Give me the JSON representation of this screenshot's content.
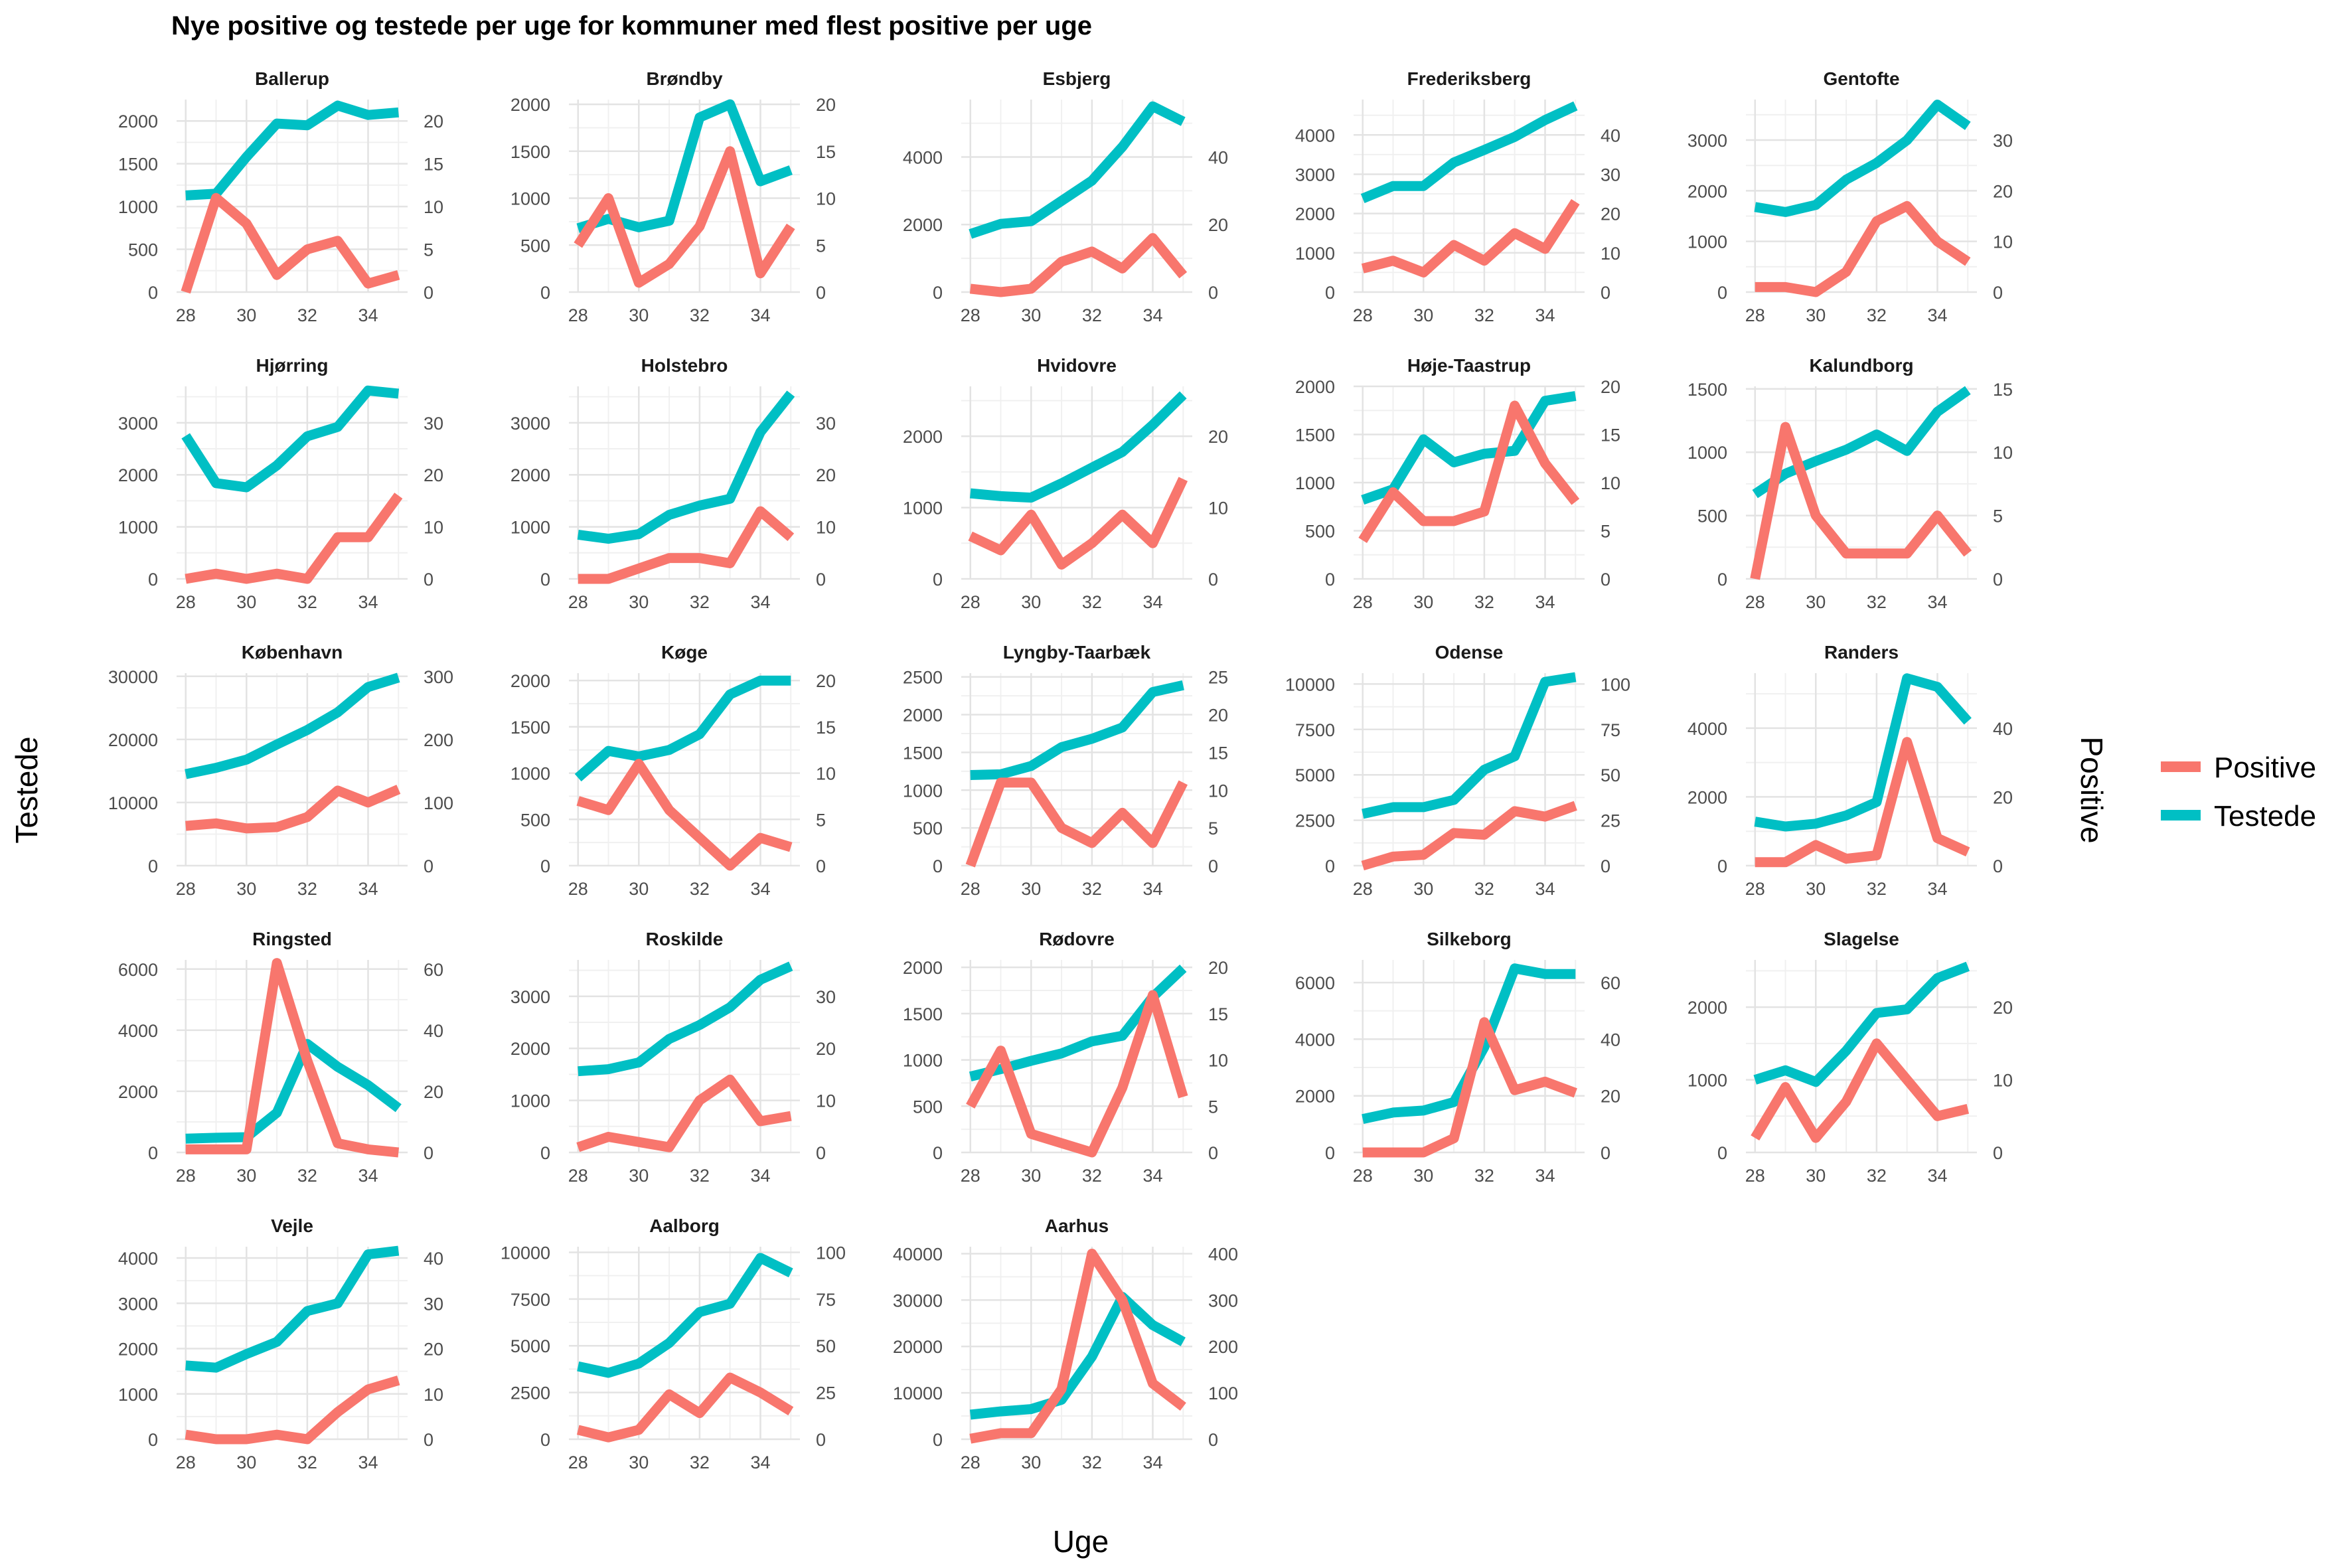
{
  "title": "Nye positive og testede per uge for kommuner med flest positive per uge",
  "xlabel": "Uge",
  "ylabel_left": "Testede",
  "ylabel_right": "Positive",
  "legend": [
    {
      "label": "Positive",
      "color": "#F8766D"
    },
    {
      "label": "Testede",
      "color": "#00BFC4"
    }
  ],
  "chart_data": {
    "type": "line",
    "weeks": [
      28,
      29,
      30,
      31,
      32,
      33,
      34,
      35
    ],
    "xticks": [
      28,
      30,
      32,
      34
    ],
    "facets": [
      {
        "name": "Ballerup",
        "testede": [
          1130,
          1150,
          1580,
          1970,
          1950,
          2180,
          2070,
          2100
        ],
        "positive": [
          0,
          11,
          8,
          2,
          5,
          6,
          1,
          2
        ],
        "left_ticks": [
          0,
          500,
          1000,
          1500,
          2000
        ],
        "right_ticks": [
          0,
          5,
          10,
          15,
          20
        ],
        "left_max": 2250,
        "right_max": 22.5
      },
      {
        "name": "Brøndby",
        "testede": [
          680,
          780,
          690,
          760,
          1860,
          2000,
          1180,
          1300
        ],
        "positive": [
          5,
          10,
          1,
          3,
          7,
          15,
          2,
          7
        ],
        "left_ticks": [
          0,
          500,
          1000,
          1500,
          2000
        ],
        "right_ticks": [
          0,
          5,
          10,
          15,
          20
        ],
        "left_max": 2050,
        "right_max": 20.5
      },
      {
        "name": "Esbjerg",
        "testede": [
          1720,
          2020,
          2100,
          2700,
          3300,
          4300,
          5500,
          5050
        ],
        "positive": [
          1,
          0,
          1,
          9,
          12,
          7,
          16,
          5
        ],
        "left_ticks": [
          0,
          2000,
          4000
        ],
        "right_ticks": [
          0,
          20,
          40
        ],
        "left_max": 5700,
        "right_max": 57
      },
      {
        "name": "Frederiksberg",
        "testede": [
          2380,
          2700,
          2700,
          3300,
          3620,
          3950,
          4380,
          4740
        ],
        "positive": [
          6,
          8,
          5,
          12,
          8,
          15,
          11,
          23
        ],
        "left_ticks": [
          0,
          1000,
          2000,
          3000,
          4000
        ],
        "right_ticks": [
          0,
          10,
          20,
          30,
          40
        ],
        "left_max": 4900,
        "right_max": 49
      },
      {
        "name": "Gentofte",
        "testede": [
          1680,
          1580,
          1720,
          2220,
          2550,
          3000,
          3700,
          3280
        ],
        "positive": [
          1,
          1,
          0,
          4,
          14,
          17,
          10,
          6
        ],
        "left_ticks": [
          0,
          1000,
          2000,
          3000
        ],
        "right_ticks": [
          0,
          10,
          20,
          30
        ],
        "left_max": 3800,
        "right_max": 38
      },
      {
        "name": "Hjørring",
        "testede": [
          2750,
          1840,
          1760,
          2180,
          2740,
          2920,
          3620,
          3560
        ],
        "positive": [
          0,
          1,
          0,
          1,
          0,
          8,
          8,
          16
        ],
        "left_ticks": [
          0,
          1000,
          2000,
          3000
        ],
        "right_ticks": [
          0,
          10,
          20,
          30
        ],
        "left_max": 3700,
        "right_max": 37
      },
      {
        "name": "Holstebro",
        "testede": [
          850,
          770,
          860,
          1230,
          1410,
          1540,
          2820,
          3560
        ],
        "positive": [
          0,
          0,
          2,
          4,
          4,
          3,
          13,
          8
        ],
        "left_ticks": [
          0,
          1000,
          2000,
          3000
        ],
        "right_ticks": [
          0,
          10,
          20,
          30
        ],
        "left_max": 3700,
        "right_max": 37
      },
      {
        "name": "Hvidovre",
        "testede": [
          1200,
          1160,
          1140,
          1340,
          1560,
          1780,
          2160,
          2580
        ],
        "positive": [
          6,
          4,
          9,
          2,
          5,
          9,
          5,
          14
        ],
        "left_ticks": [
          0,
          1000,
          2000
        ],
        "right_ticks": [
          0,
          10,
          20
        ],
        "left_max": 2700,
        "right_max": 27
      },
      {
        "name": "Høje-Taastrup",
        "testede": [
          820,
          930,
          1450,
          1210,
          1300,
          1330,
          1850,
          1900
        ],
        "positive": [
          4,
          9,
          6,
          6,
          7,
          18,
          12,
          8
        ],
        "left_ticks": [
          0,
          500,
          1000,
          1500,
          2000
        ],
        "right_ticks": [
          0,
          5,
          10,
          15,
          20
        ],
        "left_max": 2000,
        "right_max": 20
      },
      {
        "name": "Kalundborg",
        "testede": [
          670,
          830,
          930,
          1020,
          1140,
          1010,
          1320,
          1490
        ],
        "positive": [
          0,
          12,
          5,
          2,
          2,
          2,
          5,
          2
        ],
        "left_ticks": [
          0,
          500,
          1000,
          1500
        ],
        "right_ticks": [
          0,
          5,
          10,
          15
        ],
        "left_max": 1520,
        "right_max": 15.2
      },
      {
        "name": "København",
        "testede": [
          14500,
          15500,
          16800,
          19200,
          21500,
          24300,
          28300,
          29800
        ],
        "positive": [
          63,
          67,
          59,
          61,
          77,
          119,
          100,
          121
        ],
        "left_ticks": [
          0,
          10000,
          20000,
          30000
        ],
        "right_ticks": [
          0,
          100,
          200,
          300
        ],
        "left_max": 30500,
        "right_max": 305
      },
      {
        "name": "Køge",
        "testede": [
          950,
          1240,
          1180,
          1250,
          1420,
          1850,
          2000,
          2000
        ],
        "positive": [
          7,
          6,
          11,
          6,
          3,
          0,
          3,
          2
        ],
        "left_ticks": [
          0,
          500,
          1000,
          1500,
          2000
        ],
        "right_ticks": [
          0,
          5,
          10,
          15,
          20
        ],
        "left_max": 2080,
        "right_max": 20.8
      },
      {
        "name": "Lyngby-Taarbæk",
        "testede": [
          1200,
          1210,
          1320,
          1570,
          1680,
          1830,
          2300,
          2390
        ],
        "positive": [
          0,
          11,
          11,
          5,
          3,
          7,
          3,
          11
        ],
        "left_ticks": [
          0,
          500,
          1000,
          1500,
          2000,
          2500
        ],
        "right_ticks": [
          0,
          5,
          10,
          15,
          20,
          25
        ],
        "left_max": 2550,
        "right_max": 25.5
      },
      {
        "name": "Odense",
        "testede": [
          2850,
          3220,
          3220,
          3620,
          5280,
          6020,
          10120,
          10380
        ],
        "positive": [
          0,
          5,
          6,
          18,
          17,
          30,
          27,
          33
        ],
        "left_ticks": [
          0,
          2500,
          5000,
          7500,
          10000
        ],
        "right_ticks": [
          0,
          25,
          50,
          75,
          100
        ],
        "left_max": 10600,
        "right_max": 106
      },
      {
        "name": "Randers",
        "testede": [
          1280,
          1140,
          1220,
          1460,
          1850,
          5450,
          5200,
          4200
        ],
        "positive": [
          1,
          1,
          6,
          2,
          3,
          36,
          8,
          4
        ],
        "left_ticks": [
          0,
          2000,
          4000
        ],
        "right_ticks": [
          0,
          20,
          40
        ],
        "left_max": 5600,
        "right_max": 56
      },
      {
        "name": "Ringsted",
        "testede": [
          450,
          480,
          500,
          1300,
          3550,
          2800,
          2200,
          1450
        ],
        "positive": [
          1,
          1,
          1,
          62,
          30,
          3,
          1,
          0
        ],
        "left_ticks": [
          0,
          2000,
          4000,
          6000
        ],
        "right_ticks": [
          0,
          20,
          40,
          60
        ],
        "left_max": 6300,
        "right_max": 63
      },
      {
        "name": "Roskilde",
        "testede": [
          1560,
          1600,
          1730,
          2180,
          2450,
          2790,
          3320,
          3580
        ],
        "positive": [
          1,
          3,
          2,
          1,
          10,
          14,
          6,
          7
        ],
        "left_ticks": [
          0,
          1000,
          2000,
          3000
        ],
        "right_ticks": [
          0,
          10,
          20,
          30
        ],
        "left_max": 3700,
        "right_max": 37
      },
      {
        "name": "Rødovre",
        "testede": [
          820,
          900,
          990,
          1070,
          1200,
          1260,
          1680,
          1990
        ],
        "positive": [
          5,
          11,
          2,
          1,
          0,
          7,
          17,
          6
        ],
        "left_ticks": [
          0,
          500,
          1000,
          1500,
          2000
        ],
        "right_ticks": [
          0,
          5,
          10,
          15,
          20
        ],
        "left_max": 2080,
        "right_max": 20.8
      },
      {
        "name": "Silkeborg",
        "testede": [
          1180,
          1410,
          1480,
          1780,
          3720,
          6500,
          6300,
          6300
        ],
        "positive": [
          0,
          0,
          0,
          5,
          46,
          22,
          25,
          21
        ],
        "left_ticks": [
          0,
          2000,
          4000,
          6000
        ],
        "right_ticks": [
          0,
          20,
          40,
          60
        ],
        "left_max": 6800,
        "right_max": 68
      },
      {
        "name": "Slagelse",
        "testede": [
          1000,
          1130,
          970,
          1400,
          1920,
          1970,
          2400,
          2560
        ],
        "positive": [
          2,
          9,
          2,
          7,
          15,
          10,
          5,
          6
        ],
        "left_ticks": [
          0,
          1000,
          2000
        ],
        "right_ticks": [
          0,
          10,
          20
        ],
        "left_max": 2650,
        "right_max": 26.5
      },
      {
        "name": "Vejle",
        "testede": [
          1630,
          1580,
          1880,
          2150,
          2830,
          3000,
          4080,
          4160
        ],
        "positive": [
          1,
          0,
          0,
          1,
          0,
          6,
          11,
          13
        ],
        "left_ticks": [
          0,
          1000,
          2000,
          3000,
          4000
        ],
        "right_ticks": [
          0,
          10,
          20,
          30,
          40
        ],
        "left_max": 4250,
        "right_max": 42.5
      },
      {
        "name": "Aalborg",
        "testede": [
          3900,
          3550,
          4050,
          5150,
          6800,
          7250,
          9700,
          8900
        ],
        "positive": [
          5,
          1,
          5,
          24,
          14,
          33,
          25,
          15
        ],
        "left_ticks": [
          0,
          2500,
          5000,
          7500,
          10000
        ],
        "right_ticks": [
          0,
          25,
          50,
          75,
          100
        ],
        "left_max": 10300,
        "right_max": 103
      },
      {
        "name": "Aarhus",
        "testede": [
          5300,
          6000,
          6500,
          8500,
          17800,
          30700,
          24600,
          21000
        ],
        "positive": [
          1,
          13,
          13,
          108,
          400,
          300,
          120,
          70
        ],
        "left_ticks": [
          0,
          10000,
          20000,
          30000,
          40000
        ],
        "right_ticks": [
          0,
          100,
          200,
          300,
          400
        ],
        "left_max": 41500,
        "right_max": 415
      }
    ]
  }
}
